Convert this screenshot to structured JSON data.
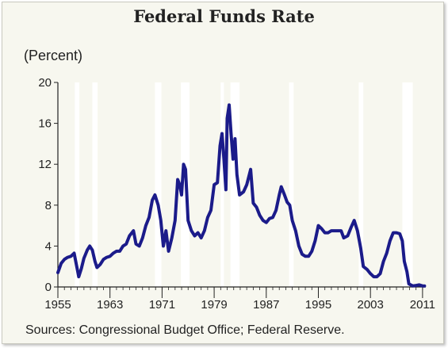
{
  "chart_data": {
    "type": "line",
    "title": "Federal Funds Rate",
    "ylabel": "(Percent)",
    "source": "Sources:  Congressional Budget Office; Federal Reserve.",
    "xlim": [
      1955,
      2011.5
    ],
    "ylim": [
      0,
      20
    ],
    "x_ticks": [
      1955,
      1963,
      1971,
      1979,
      1987,
      1995,
      2003,
      2011
    ],
    "x_tick_labels": [
      "1955",
      "1963",
      "1971",
      "1979",
      "1987",
      "1995",
      "2003",
      "2011"
    ],
    "y_ticks": [
      0,
      4,
      8,
      12,
      16,
      20
    ],
    "y_tick_labels": [
      "0",
      "4",
      "8",
      "12",
      "16",
      "20"
    ],
    "grid": false,
    "line_color": "#1b1b8a",
    "recession_color": "#ffffff",
    "recessions": [
      [
        1957.6,
        1958.3
      ],
      [
        1960.3,
        1961.1
      ],
      [
        1969.9,
        1970.9
      ],
      [
        1973.9,
        1975.2
      ],
      [
        1980.0,
        1980.5
      ],
      [
        1981.5,
        1982.9
      ],
      [
        1990.5,
        1991.2
      ],
      [
        2001.2,
        2001.9
      ],
      [
        2007.9,
        2009.5
      ]
    ],
    "series": [
      {
        "x": [
          1955.0,
          1955.5,
          1956.0,
          1956.5,
          1957.0,
          1957.5,
          1957.9,
          1958.2,
          1958.6,
          1959.0,
          1959.5,
          1959.9,
          1960.3,
          1960.7,
          1961.0,
          1961.5,
          1962.0,
          1962.5,
          1963.0,
          1963.5,
          1964.0,
          1964.5,
          1965.0,
          1965.5,
          1966.0,
          1966.6,
          1967.0,
          1967.5,
          1968.0,
          1968.5,
          1969.0,
          1969.5,
          1969.9,
          1970.4,
          1970.8,
          1971.2,
          1971.6,
          1972.0,
          1972.5,
          1973.0,
          1973.4,
          1973.7,
          1974.0,
          1974.3,
          1974.6,
          1975.0,
          1975.5,
          1976.0,
          1976.5,
          1977.0,
          1977.5,
          1978.0,
          1978.5,
          1979.0,
          1979.5,
          1979.9,
          1980.2,
          1980.5,
          1980.8,
          1981.0,
          1981.3,
          1981.6,
          1981.9,
          1982.2,
          1982.5,
          1982.9,
          1983.5,
          1984.0,
          1984.6,
          1985.0,
          1985.5,
          1986.0,
          1986.5,
          1987.0,
          1987.5,
          1988.0,
          1988.5,
          1989.0,
          1989.3,
          1989.8,
          1990.2,
          1990.6,
          1991.0,
          1991.5,
          1992.0,
          1992.5,
          1993.0,
          1993.5,
          1994.0,
          1994.5,
          1995.0,
          1995.5,
          1996.0,
          1996.5,
          1997.0,
          1997.5,
          1998.0,
          1998.5,
          1998.9,
          1999.5,
          2000.0,
          2000.5,
          2001.0,
          2001.5,
          2001.9,
          2002.5,
          2003.0,
          2003.5,
          2004.0,
          2004.5,
          2005.0,
          2005.5,
          2006.0,
          2006.5,
          2007.0,
          2007.5,
          2007.9,
          2008.2,
          2008.6,
          2008.9,
          2009.5,
          2010.0,
          2010.5,
          2011.0,
          2011.3
        ],
        "y": [
          1.4,
          2.3,
          2.7,
          2.9,
          3.0,
          3.3,
          2.0,
          1.0,
          1.8,
          2.8,
          3.6,
          4.0,
          3.6,
          2.5,
          1.9,
          2.2,
          2.7,
          2.9,
          3.0,
          3.3,
          3.5,
          3.5,
          4.0,
          4.2,
          5.0,
          5.5,
          4.2,
          4.0,
          4.8,
          6.0,
          6.8,
          8.5,
          9.0,
          8.0,
          6.5,
          4.0,
          5.5,
          3.5,
          4.8,
          6.5,
          10.5,
          10.0,
          9.0,
          12.0,
          11.5,
          6.5,
          5.5,
          5.0,
          5.3,
          4.8,
          5.5,
          6.8,
          7.5,
          10.0,
          10.2,
          13.8,
          15.0,
          12.5,
          9.5,
          16.5,
          17.8,
          15.0,
          12.5,
          14.5,
          11.0,
          9.0,
          9.3,
          10.0,
          11.5,
          8.2,
          7.8,
          7.0,
          6.5,
          6.3,
          6.7,
          6.8,
          7.5,
          9.0,
          9.8,
          9.0,
          8.3,
          8.0,
          6.5,
          5.5,
          4.0,
          3.2,
          3.0,
          3.0,
          3.5,
          4.5,
          6.0,
          5.7,
          5.3,
          5.3,
          5.5,
          5.5,
          5.5,
          5.5,
          4.8,
          5.0,
          5.8,
          6.5,
          5.5,
          3.8,
          2.0,
          1.7,
          1.3,
          1.0,
          1.0,
          1.3,
          2.5,
          3.3,
          4.5,
          5.3,
          5.3,
          5.2,
          4.5,
          2.5,
          1.5,
          0.3,
          0.1,
          0.15,
          0.2,
          0.1,
          0.1
        ]
      }
    ]
  }
}
